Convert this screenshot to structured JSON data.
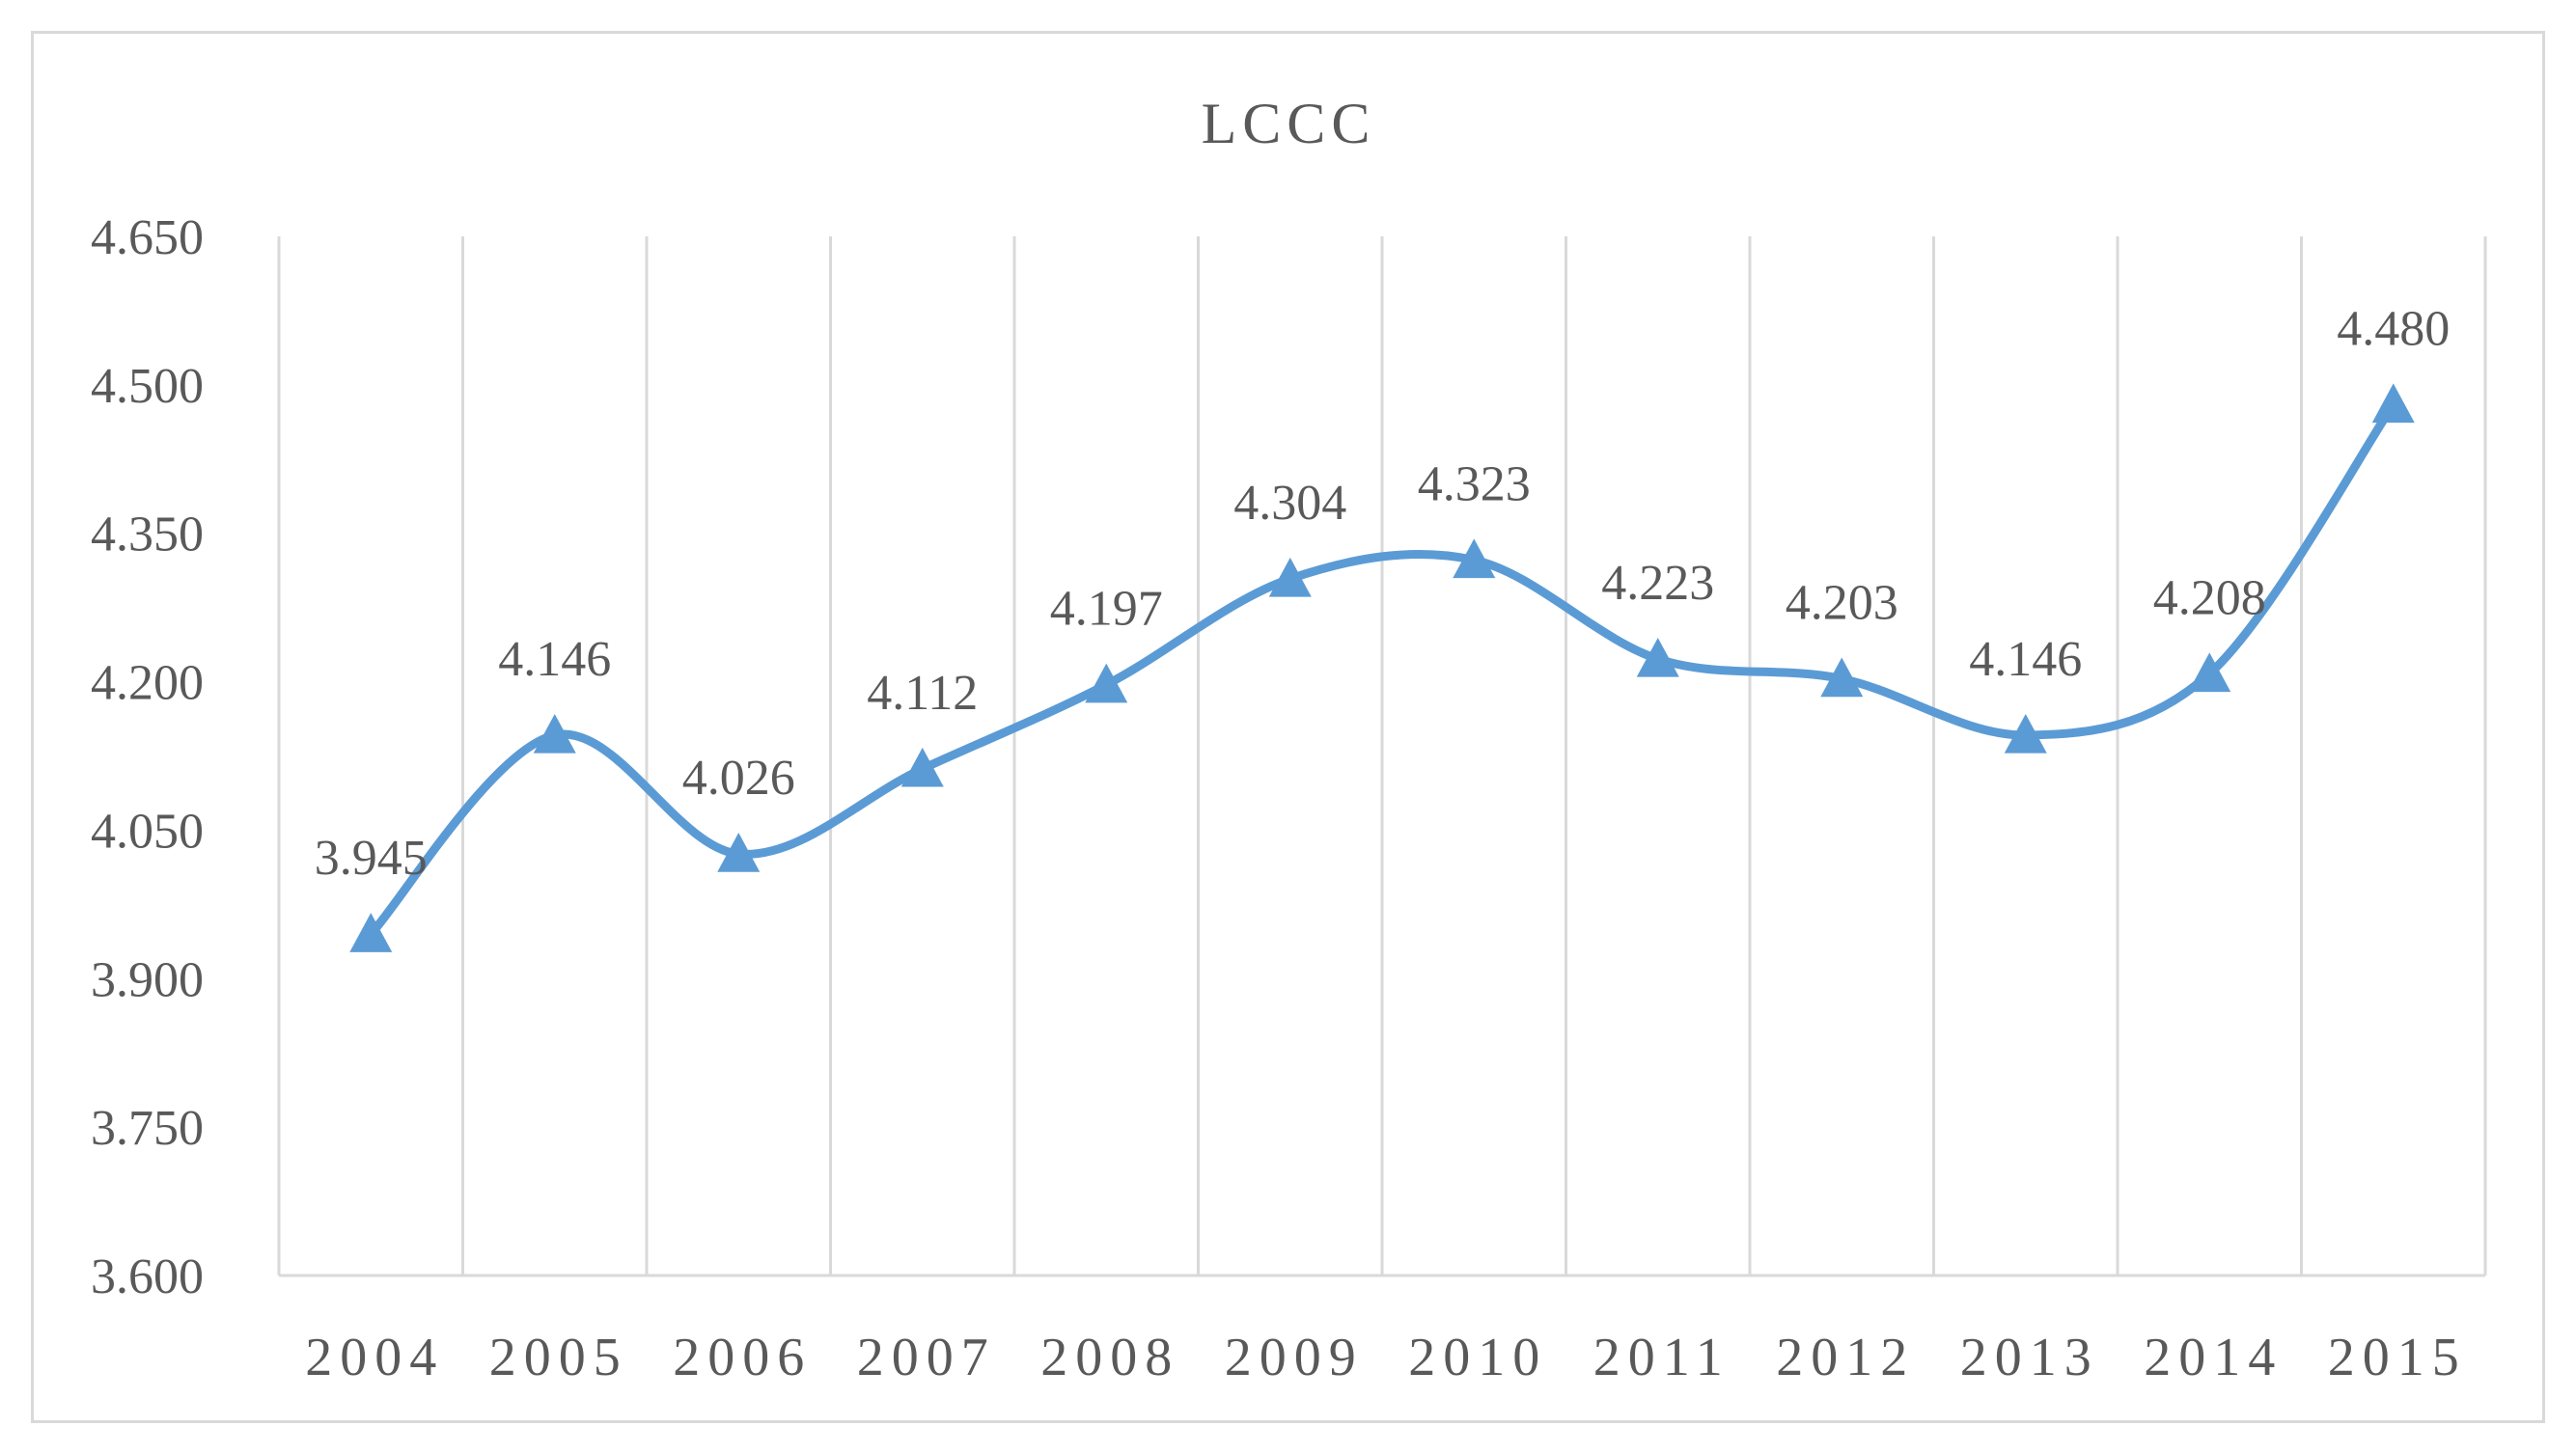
{
  "chart_data": {
    "type": "line",
    "title": "LCCC",
    "categories": [
      "2004",
      "2005",
      "2006",
      "2007",
      "2008",
      "2009",
      "2010",
      "2011",
      "2012",
      "2013",
      "2014",
      "2015"
    ],
    "series": [
      {
        "values": [
          3.945,
          4.146,
          4.026,
          4.112,
          4.197,
          4.304,
          4.323,
          4.223,
          4.203,
          4.146,
          4.208,
          4.48
        ],
        "labels": [
          "3.945",
          "4.146",
          "4.026",
          "4.112",
          "4.197",
          "4.304",
          "4.323",
          "4.223",
          "4.203",
          "4.146",
          "4.208",
          "4.480"
        ],
        "color": "#5b9bd5",
        "marker": "triangle",
        "smooth": true
      }
    ],
    "ylim": [
      3.6,
      4.65
    ],
    "yticks": [
      "3.600",
      "3.750",
      "3.900",
      "4.050",
      "4.200",
      "4.350",
      "4.500",
      "4.650"
    ],
    "grid": "vertical",
    "legend": "none"
  }
}
